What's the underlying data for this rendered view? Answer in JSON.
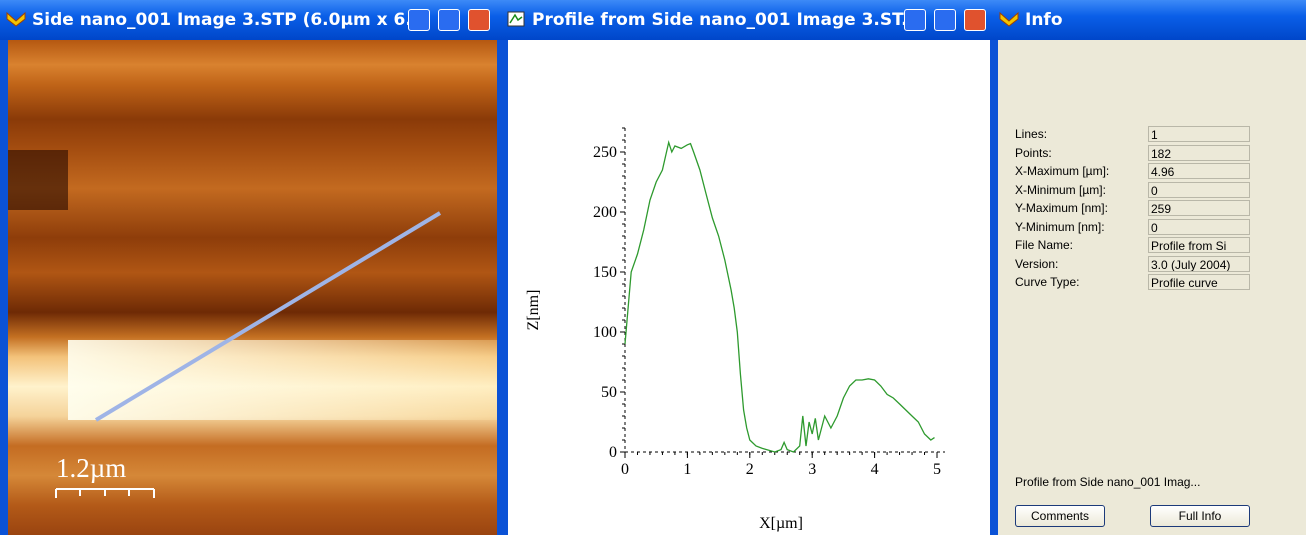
{
  "windows": {
    "image": {
      "title": "Side  nano_001 Image 3.STP (6.0µm x 6...",
      "scale_label": "1.2µm"
    },
    "profile": {
      "title": "Profile from Side  nano_001 Image 3.ST..."
    },
    "info": {
      "title": "Info",
      "fields": [
        {
          "label": "Lines:",
          "value": "1"
        },
        {
          "label": "Points:",
          "value": "182"
        },
        {
          "label": "X-Maximum [µm]:",
          "value": "4.96"
        },
        {
          "label": "X-Minimum [µm]:",
          "value": "0"
        },
        {
          "label": "Y-Maximum [nm]:",
          "value": "259"
        },
        {
          "label": "Y-Minimum [nm]:",
          "value": "0"
        },
        {
          "label": "File Name:",
          "value": "Profile from Si"
        },
        {
          "label": "Version:",
          "value": "3.0 (July 2004)"
        },
        {
          "label": "Curve Type:",
          "value": "Profile curve"
        }
      ],
      "footer": "Profile from Side  nano_001 Imag...",
      "buttons": [
        "Comments",
        "Full Info"
      ]
    }
  },
  "profile_chart": {
    "type": "line",
    "x_label": "X[µm]",
    "y_label": "Z[nm]",
    "color": "#2e9a2e",
    "xlim": [
      0,
      5
    ],
    "ylim": [
      0,
      270
    ],
    "xticks": [
      0,
      1,
      2,
      3,
      4,
      5
    ],
    "yticks": [
      0,
      50,
      100,
      150,
      200,
      250
    ],
    "x": [
      0,
      0.05,
      0.1,
      0.2,
      0.3,
      0.4,
      0.5,
      0.6,
      0.7,
      0.75,
      0.8,
      0.9,
      1.0,
      1.05,
      1.1,
      1.2,
      1.3,
      1.4,
      1.5,
      1.6,
      1.7,
      1.75,
      1.8,
      1.85,
      1.9,
      1.95,
      2.0,
      2.1,
      2.2,
      2.4,
      2.5,
      2.55,
      2.6,
      2.7,
      2.8,
      2.85,
      2.9,
      2.95,
      3.0,
      3.05,
      3.1,
      3.2,
      3.3,
      3.4,
      3.5,
      3.6,
      3.7,
      3.8,
      3.9,
      4.0,
      4.1,
      4.2,
      4.3,
      4.4,
      4.5,
      4.6,
      4.7,
      4.8,
      4.9,
      4.96
    ],
    "values": [
      90,
      120,
      150,
      165,
      185,
      210,
      225,
      235,
      258,
      250,
      255,
      253,
      256,
      257,
      250,
      235,
      215,
      195,
      180,
      160,
      135,
      120,
      100,
      65,
      35,
      20,
      10,
      5,
      3,
      0,
      2,
      8,
      2,
      0,
      5,
      30,
      5,
      25,
      15,
      28,
      10,
      30,
      20,
      30,
      45,
      55,
      60,
      60,
      61,
      60,
      55,
      48,
      45,
      40,
      35,
      30,
      25,
      15,
      10,
      12
    ]
  }
}
